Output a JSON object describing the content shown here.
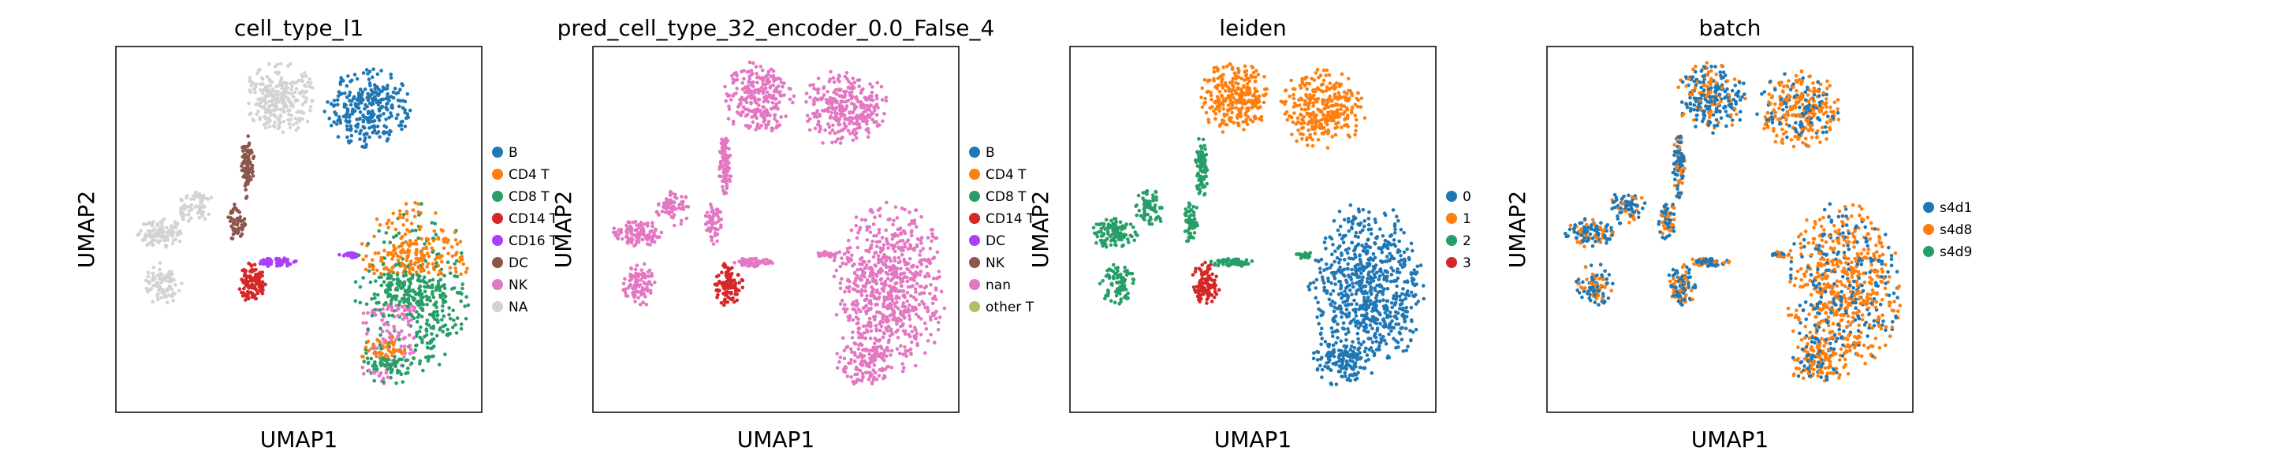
{
  "chart_data": [
    {
      "type": "scatter",
      "title": "cell_type_l1",
      "xlabel": "UMAP1",
      "ylabel": "UMAP2",
      "legend_placement": "right",
      "legend": [
        {
          "label": "B",
          "color": "#1f77b4"
        },
        {
          "label": "CD4 T",
          "color": "#ff7f0e"
        },
        {
          "label": "CD8 T",
          "color": "#279e68"
        },
        {
          "label": "CD14 T",
          "color": "#d62728"
        },
        {
          "label": "CD16 T",
          "color": "#aa40fc"
        },
        {
          "label": "DC",
          "color": "#8c564b"
        },
        {
          "label": "NK",
          "color": "#e377c2"
        },
        {
          "label": "NA",
          "color": "#d3d3d3"
        }
      ],
      "regions": [
        {
          "region": "upper-left cluster",
          "color": "#d3d3d3"
        },
        {
          "region": "upper-right cluster",
          "color": "#1f77b4"
        },
        {
          "region": "left arm",
          "color": "#d3d3d3"
        },
        {
          "region": "stem",
          "color": "#8c564b"
        },
        {
          "region": "small lobe",
          "color": "#d62728"
        },
        {
          "region": "bridge",
          "color": "#aa40fc"
        },
        {
          "region": "lower-right cluster",
          "color": "#279e68",
          "mix": [
            {
              "color": "#ff7f0e",
              "area": "top"
            },
            {
              "color": "#e377c2",
              "area": "bottom-left"
            }
          ]
        }
      ]
    },
    {
      "type": "scatter",
      "title": "pred_cell_type_32_encoder_0.0_False_4",
      "xlabel": "UMAP1",
      "ylabel": "UMAP2",
      "legend_placement": "right",
      "legend": [
        {
          "label": "B",
          "color": "#1f77b4"
        },
        {
          "label": "CD4 T",
          "color": "#ff7f0e"
        },
        {
          "label": "CD8 T",
          "color": "#279e68"
        },
        {
          "label": "CD14 T",
          "color": "#d62728"
        },
        {
          "label": "DC",
          "color": "#aa40fc"
        },
        {
          "label": "NK",
          "color": "#8c564b"
        },
        {
          "label": "nan",
          "color": "#e377c2"
        },
        {
          "label": "other T",
          "color": "#b5bd61"
        }
      ],
      "regions": [
        {
          "region": "upper-left cluster",
          "color": "#e377c2"
        },
        {
          "region": "upper-right cluster",
          "color": "#e377c2"
        },
        {
          "region": "left arm",
          "color": "#e377c2"
        },
        {
          "region": "stem",
          "color": "#e377c2"
        },
        {
          "region": "small lobe",
          "color": "#d62728"
        },
        {
          "region": "bridge",
          "color": "#e377c2"
        },
        {
          "region": "lower-right cluster",
          "color": "#e377c2"
        }
      ]
    },
    {
      "type": "scatter",
      "title": "leiden",
      "xlabel": "UMAP1",
      "ylabel": "UMAP2",
      "legend_placement": "right",
      "legend": [
        {
          "label": "0",
          "color": "#1f77b4"
        },
        {
          "label": "1",
          "color": "#ff7f0e"
        },
        {
          "label": "2",
          "color": "#279e68"
        },
        {
          "label": "3",
          "color": "#d62728"
        }
      ],
      "regions": [
        {
          "region": "upper-left cluster",
          "color": "#ff7f0e"
        },
        {
          "region": "upper-right cluster",
          "color": "#ff7f0e"
        },
        {
          "region": "left arm",
          "color": "#279e68"
        },
        {
          "region": "stem",
          "color": "#279e68"
        },
        {
          "region": "small lobe",
          "color": "#d62728"
        },
        {
          "region": "bridge",
          "color": "#279e68"
        },
        {
          "region": "lower-right cluster",
          "color": "#1f77b4"
        }
      ]
    },
    {
      "type": "scatter",
      "title": "batch",
      "xlabel": "UMAP1",
      "ylabel": "UMAP2",
      "legend_placement": "right",
      "legend": [
        {
          "label": "s4d1",
          "color": "#1f77b4"
        },
        {
          "label": "s4d8",
          "color": "#ff7f0e"
        },
        {
          "label": "s4d9",
          "color": "#279e68"
        }
      ],
      "regions": [
        {
          "region": "upper-left cluster",
          "color": "#1f77b4",
          "mix": [
            {
              "color": "#ff7f0e",
              "area": "scattered"
            }
          ]
        },
        {
          "region": "upper-right cluster",
          "color": "#ff7f0e",
          "mix": [
            {
              "color": "#1f77b4",
              "area": "scattered"
            }
          ]
        },
        {
          "region": "left arm",
          "color": "#1f77b4",
          "mix": [
            {
              "color": "#ff7f0e",
              "area": "scattered"
            }
          ]
        },
        {
          "region": "stem",
          "color": "#1f77b4",
          "mix": [
            {
              "color": "#ff7f0e",
              "area": "scattered"
            }
          ]
        },
        {
          "region": "small lobe",
          "color": "#1f77b4",
          "mix": [
            {
              "color": "#ff7f0e",
              "area": "scattered"
            }
          ]
        },
        {
          "region": "bridge",
          "color": "#1f77b4",
          "mix": [
            {
              "color": "#ff7f0e",
              "area": "scattered"
            }
          ]
        },
        {
          "region": "lower-right cluster",
          "color": "#ff7f0e",
          "mix": [
            {
              "color": "#1f77b4",
              "area": "scattered"
            }
          ]
        }
      ]
    }
  ]
}
